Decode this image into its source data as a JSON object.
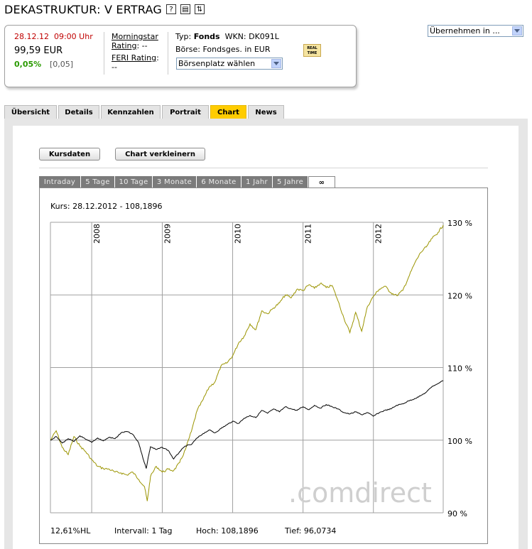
{
  "header": {
    "title": "DEKASTRUKTUR: V ERTRAG",
    "icons": [
      "help-icon",
      "print-icon",
      "switch-icon"
    ],
    "uebernehmen_select": "Übernehmen in ..."
  },
  "quote": {
    "datetime": "28.12.12  09:00 Uhr",
    "price": "99,59 EUR",
    "change_pct": "0,05%",
    "change_abs": "[0,05]"
  },
  "ratings": {
    "morningstar_label": "Morningstar",
    "morningstar_line2": "Rating",
    "morningstar_value": ": --",
    "feri_label": "FERI Rating",
    "feri_suffix": ":",
    "feri_value": "--"
  },
  "fund": {
    "typ_prefix": "Typ: ",
    "typ_value": "Fonds",
    "wkn": "WKN: DK091L",
    "boerse": "Börse: Fondsges. in EUR",
    "boersenplatz_select": "Börsenplatz wählen",
    "realtime_badge": "REAL TIME"
  },
  "tabs": [
    {
      "label": "Übersicht",
      "active": false
    },
    {
      "label": "Details",
      "active": false
    },
    {
      "label": "Kennzahlen",
      "active": false
    },
    {
      "label": "Portrait",
      "active": false
    },
    {
      "label": "Chart",
      "active": true
    },
    {
      "label": "News",
      "active": false
    }
  ],
  "buttons": {
    "kursdaten": "Kursdaten",
    "chart_verkleinern": "Chart verkleinern"
  },
  "range_tabs": [
    {
      "label": "Intraday",
      "active": false
    },
    {
      "label": "5 Tage",
      "active": false
    },
    {
      "label": "10 Tage",
      "active": false
    },
    {
      "label": "3 Monate",
      "active": false
    },
    {
      "label": "6 Monate",
      "active": false
    },
    {
      "label": "1 Jahr",
      "active": false
    },
    {
      "label": "5 Jahre",
      "active": false
    },
    {
      "label": "∞",
      "active": true
    }
  ],
  "chart_data": {
    "type": "line",
    "kurs_label": "Kurs: 28.12.2012 - 108,1896",
    "watermark": ".comdirect",
    "x_years": [
      "2008",
      "2009",
      "2010",
      "2011",
      "2012"
    ],
    "y_ticks": [
      {
        "value": 90,
        "label": "90 %"
      },
      {
        "value": 100,
        "label": "100 %"
      },
      {
        "value": 110,
        "label": "110 %"
      },
      {
        "value": 120,
        "label": "120 %"
      },
      {
        "value": 130,
        "label": "130 %"
      }
    ],
    "ylim": [
      90,
      130
    ],
    "grid": true,
    "colors": {
      "fund": "#000000",
      "benchmark": "#9b9400",
      "grid": "#a0a0a0"
    },
    "series": [
      {
        "key": "fund",
        "x": [
          "2007-06-01",
          "2007-07-01",
          "2007-08-01",
          "2007-09-01",
          "2007-10-01",
          "2007-11-01",
          "2007-12-01",
          "2008-01-01",
          "2008-02-01",
          "2008-03-01",
          "2008-04-01",
          "2008-05-01",
          "2008-06-01",
          "2008-07-01",
          "2008-08-01",
          "2008-09-01",
          "2008-09-20",
          "2008-10-10",
          "2008-10-20",
          "2008-11-01",
          "2008-12-01",
          "2009-01-01",
          "2009-02-01",
          "2009-03-01",
          "2009-04-01",
          "2009-05-01",
          "2009-06-01",
          "2009-07-01",
          "2009-08-01",
          "2009-09-01",
          "2009-10-01",
          "2009-11-01",
          "2009-12-01",
          "2010-01-01",
          "2010-02-01",
          "2010-03-01",
          "2010-04-01",
          "2010-05-01",
          "2010-06-01",
          "2010-07-01",
          "2010-08-01",
          "2010-09-01",
          "2010-10-01",
          "2010-11-01",
          "2010-12-01",
          "2011-01-01",
          "2011-02-01",
          "2011-03-01",
          "2011-04-01",
          "2011-05-01",
          "2011-06-01",
          "2011-07-01",
          "2011-08-01",
          "2011-09-01",
          "2011-10-01",
          "2011-11-01",
          "2011-12-01",
          "2012-01-01",
          "2012-02-01",
          "2012-03-01",
          "2012-04-01",
          "2012-05-01",
          "2012-06-01",
          "2012-07-01",
          "2012-08-01",
          "2012-09-01",
          "2012-10-01",
          "2012-11-01",
          "2012-12-28"
        ],
        "y": [
          100.0,
          100.5,
          99.6,
          100.2,
          99.8,
          100.6,
          100.1,
          99.7,
          100.3,
          99.9,
          100.4,
          100.2,
          101.0,
          101.2,
          100.8,
          99.6,
          97.8,
          96.1,
          97.6,
          99.1,
          98.7,
          99.0,
          98.6,
          97.4,
          98.4,
          99.2,
          99.4,
          100.3,
          100.9,
          101.4,
          101.0,
          101.6,
          102.1,
          102.6,
          102.3,
          103.0,
          103.4,
          103.1,
          104.1,
          103.7,
          104.3,
          103.9,
          104.6,
          104.3,
          104.1,
          104.6,
          104.2,
          104.8,
          104.4,
          104.9,
          104.6,
          104.3,
          103.8,
          103.6,
          103.9,
          103.5,
          103.8,
          103.3,
          103.8,
          104.1,
          104.3,
          104.8,
          105.0,
          105.4,
          105.7,
          106.1,
          106.6,
          107.4,
          108.2
        ]
      },
      {
        "key": "benchmark",
        "x": [
          "2007-06-01",
          "2007-07-01",
          "2007-08-01",
          "2007-09-01",
          "2007-10-01",
          "2007-11-01",
          "2007-12-01",
          "2008-01-01",
          "2008-02-01",
          "2008-03-01",
          "2008-04-01",
          "2008-05-01",
          "2008-06-01",
          "2008-07-01",
          "2008-08-01",
          "2008-09-01",
          "2008-10-01",
          "2008-10-15",
          "2008-11-01",
          "2008-12-01",
          "2009-01-01",
          "2009-02-01",
          "2009-03-01",
          "2009-04-01",
          "2009-05-01",
          "2009-06-01",
          "2009-07-01",
          "2009-08-01",
          "2009-09-01",
          "2009-10-01",
          "2009-11-01",
          "2009-12-01",
          "2010-01-01",
          "2010-02-01",
          "2010-03-01",
          "2010-04-01",
          "2010-05-01",
          "2010-06-01",
          "2010-07-01",
          "2010-08-01",
          "2010-09-01",
          "2010-10-01",
          "2010-11-01",
          "2010-12-01",
          "2011-01-01",
          "2011-02-01",
          "2011-03-01",
          "2011-04-01",
          "2011-05-01",
          "2011-06-01",
          "2011-07-01",
          "2011-08-01",
          "2011-09-01",
          "2011-10-01",
          "2011-11-01",
          "2011-12-01",
          "2012-01-01",
          "2012-02-01",
          "2012-03-01",
          "2012-04-01",
          "2012-05-01",
          "2012-06-01",
          "2012-07-01",
          "2012-08-01",
          "2012-09-01",
          "2012-10-01",
          "2012-11-01",
          "2012-12-01",
          "2012-12-28"
        ],
        "y": [
          100.0,
          101.3,
          99.0,
          98.0,
          100.5,
          99.2,
          98.4,
          97.3,
          96.4,
          96.1,
          96.0,
          95.6,
          95.5,
          95.2,
          95.6,
          94.6,
          93.6,
          91.6,
          95.0,
          96.4,
          95.6,
          96.0,
          95.8,
          96.9,
          98.7,
          101.2,
          104.1,
          105.6,
          107.3,
          108.0,
          110.2,
          110.6,
          111.6,
          113.4,
          114.3,
          116.0,
          115.2,
          117.8,
          117.4,
          118.2,
          118.9,
          120.0,
          119.6,
          120.8,
          120.6,
          121.4,
          120.9,
          121.6,
          121.0,
          121.3,
          119.2,
          116.8,
          114.8,
          117.6,
          115.0,
          118.4,
          119.8,
          120.8,
          121.2,
          120.3,
          119.9,
          120.6,
          122.4,
          124.3,
          125.8,
          126.6,
          127.8,
          128.6,
          129.6
        ]
      }
    ],
    "stats": {
      "hl": "12,61%HL",
      "intervall": "Intervall: 1 Tag",
      "hoch": "Hoch: 108,1896",
      "tief": "Tief: 96,0734"
    }
  }
}
